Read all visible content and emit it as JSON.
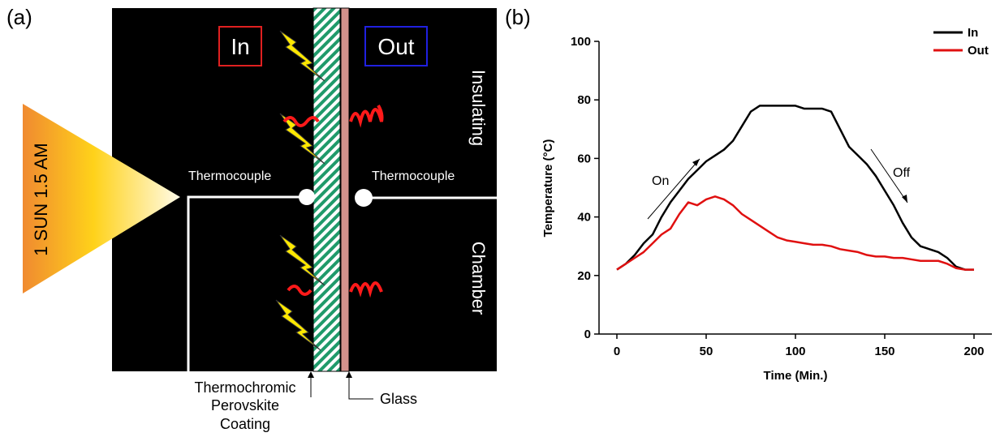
{
  "diagram": {
    "panel_label": "(a)",
    "in_label": "In",
    "out_label": "Out",
    "sun_label": "1 SUN 1.5 AM",
    "thermocouple_in": "Thermocouple",
    "thermocouple_out": "Thermocouple",
    "chamber_top": "Insulating",
    "chamber_bottom": "Chamber",
    "coating_label": [
      "Thermochromic",
      "Perovskite",
      "Coating"
    ],
    "glass_label": "Glass"
  },
  "chart_data": {
    "type": "line",
    "panel_label": "(b)",
    "xlabel": "Time (Min.)",
    "ylabel": "Temperature (°C)",
    "annotations": [
      "On",
      "Off"
    ],
    "legend": "upper right",
    "xlim": [
      -10,
      210
    ],
    "xticks": [
      0,
      50,
      100,
      150,
      200
    ],
    "ylim": [
      0,
      100
    ],
    "yticks": [
      0,
      20,
      40,
      60,
      80,
      100
    ],
    "x": [
      0,
      5,
      10,
      15,
      20,
      25,
      30,
      35,
      40,
      45,
      50,
      55,
      60,
      65,
      70,
      75,
      80,
      85,
      90,
      95,
      100,
      105,
      110,
      115,
      120,
      125,
      130,
      135,
      140,
      145,
      150,
      155,
      160,
      165,
      170,
      175,
      180,
      185,
      190,
      195,
      200
    ],
    "series": [
      {
        "name": "In",
        "color": "#000000",
        "values": [
          22,
          24,
          27,
          31,
          34,
          40,
          45,
          49,
          53,
          56,
          59,
          61,
          63,
          66,
          71,
          76,
          78,
          78,
          78,
          78,
          78,
          77,
          77,
          77,
          76,
          70,
          64,
          61,
          58,
          54,
          49,
          44,
          38,
          33,
          30,
          29,
          28,
          26,
          23,
          22,
          22
        ]
      },
      {
        "name": "Out",
        "color": "#e01010",
        "values": [
          22,
          24,
          26,
          28,
          31,
          34,
          36,
          41,
          45,
          44,
          46,
          47,
          46,
          44,
          41,
          39,
          37,
          35,
          33,
          32,
          31.5,
          31,
          30.5,
          30.5,
          30,
          29,
          28.5,
          28,
          27,
          26.5,
          26.5,
          26,
          26,
          25.5,
          25,
          25,
          25,
          24,
          22.5,
          22,
          22
        ]
      }
    ]
  }
}
